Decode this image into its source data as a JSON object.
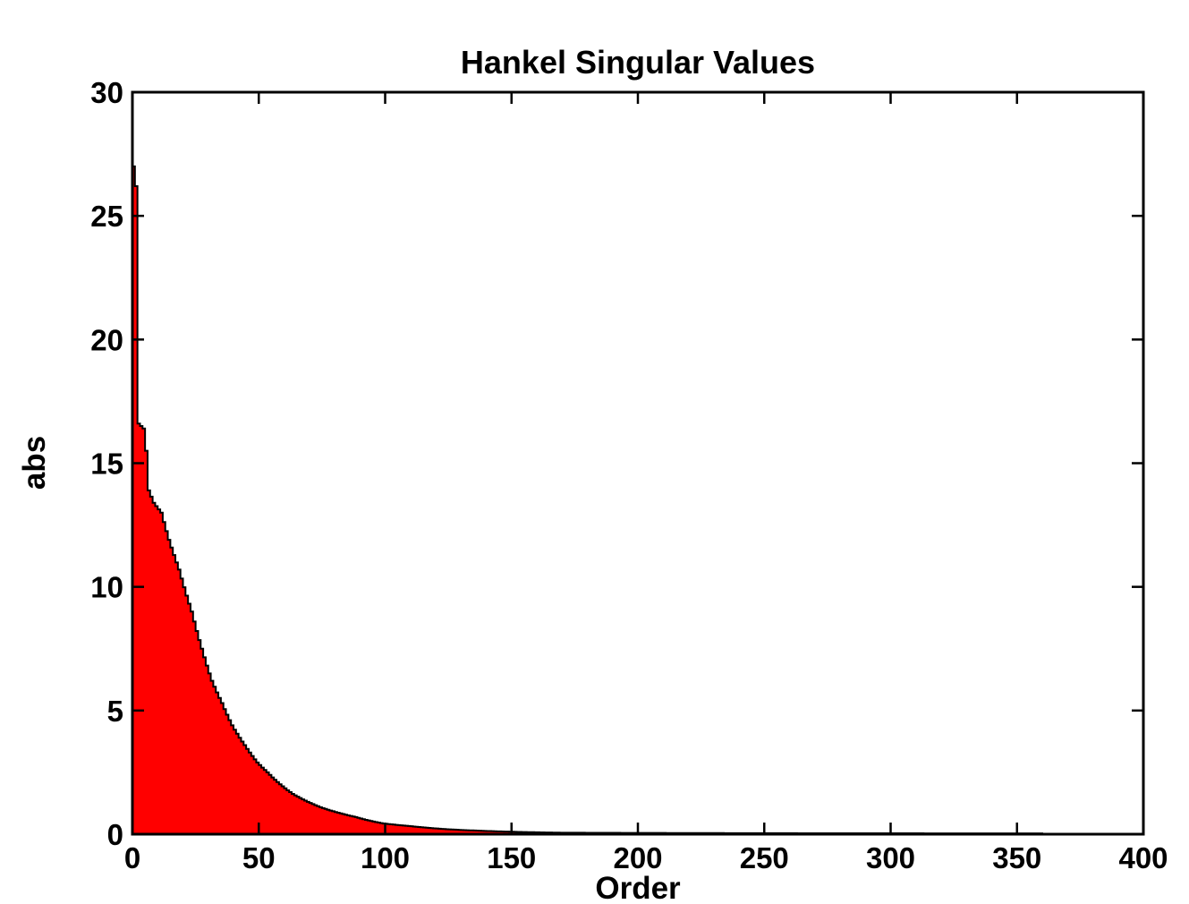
{
  "chart_data": {
    "type": "bar",
    "title": "Hankel Singular Values",
    "xlabel": "Order",
    "ylabel": "abs",
    "xlim": [
      0,
      400
    ],
    "ylim": [
      0,
      30
    ],
    "x_ticks": [
      0,
      50,
      100,
      150,
      200,
      250,
      300,
      350,
      400
    ],
    "y_ticks": [
      0,
      5,
      10,
      15,
      20,
      25,
      30
    ],
    "grid": false,
    "legend_position": "none",
    "bar_color": "#FF0000",
    "bar_edge_color": "#000000",
    "background_color": "#FFFFFF",
    "n_bars": 360,
    "anchors_format": "[order, hankel_singular_value] points read off the plot; intermediate bars follow a log-linear decay between anchors",
    "anchors": [
      [
        1,
        27.0
      ],
      [
        2,
        26.2
      ],
      [
        3,
        16.6
      ],
      [
        5,
        16.4
      ],
      [
        6,
        15.5
      ],
      [
        7,
        13.9
      ],
      [
        9,
        13.4
      ],
      [
        12,
        13.0
      ],
      [
        15,
        11.9
      ],
      [
        19,
        10.7
      ],
      [
        24,
        9.0
      ],
      [
        28,
        7.5
      ],
      [
        32,
        6.2
      ],
      [
        36,
        5.3
      ],
      [
        40,
        4.4
      ],
      [
        45,
        3.6
      ],
      [
        50,
        2.9
      ],
      [
        54,
        2.5
      ],
      [
        64,
        1.63
      ],
      [
        75,
        1.09
      ],
      [
        89,
        0.69
      ],
      [
        100,
        0.43
      ],
      [
        110,
        0.33
      ],
      [
        125,
        0.2
      ],
      [
        150,
        0.1
      ],
      [
        170,
        0.06
      ],
      [
        200,
        0.05
      ],
      [
        250,
        0.04
      ],
      [
        300,
        0.035
      ],
      [
        360,
        0.03
      ]
    ]
  }
}
